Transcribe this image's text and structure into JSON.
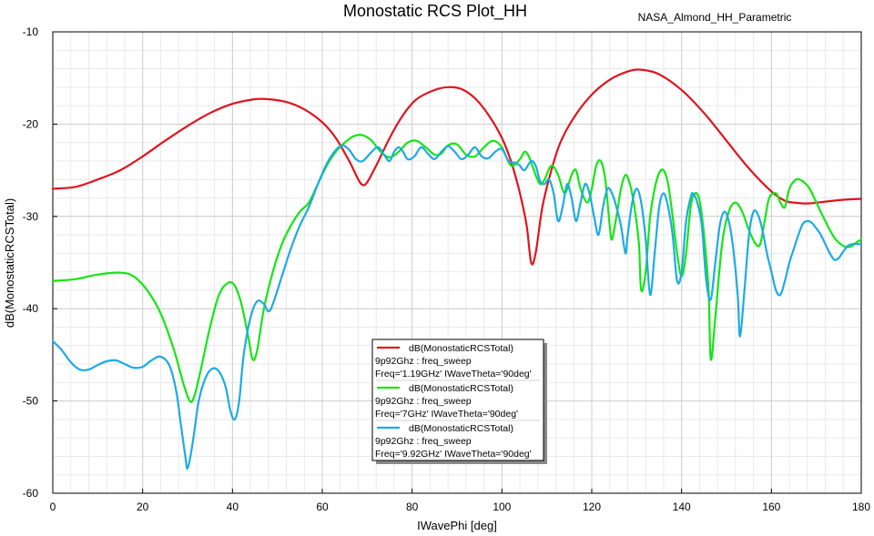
{
  "chart_data": {
    "type": "line",
    "title": "Monostatic RCS Plot_HH",
    "subtitle": "NASA_Almond_HH_Parametric",
    "xlabel": "IWavePhi [deg]",
    "ylabel": "dB(MonostaticRCSTotal)",
    "xlim": [
      0,
      180
    ],
    "ylim": [
      -60,
      -10
    ],
    "xticks": [
      0,
      20,
      40,
      60,
      80,
      100,
      120,
      140,
      160,
      180
    ],
    "yticks": [
      -10,
      -20,
      -30,
      -40,
      -50,
      -60
    ],
    "grid": true,
    "legend_position": "center",
    "series": [
      {
        "name": "dB(MonostaticRCSTotal)",
        "desc_line1": "9p92Ghz : freq_sweep",
        "desc_line2": "Freq='1.19GHz' IWaveTheta='90deg'",
        "color": "#e0141e",
        "points": [
          [
            0,
            -27
          ],
          [
            5,
            -26.8
          ],
          [
            10,
            -26
          ],
          [
            15,
            -25
          ],
          [
            20,
            -23.5
          ],
          [
            25,
            -21.8
          ],
          [
            30,
            -20.2
          ],
          [
            35,
            -18.8
          ],
          [
            40,
            -17.8
          ],
          [
            45,
            -17.3
          ],
          [
            48,
            -17.3
          ],
          [
            52,
            -17.6
          ],
          [
            56,
            -18.4
          ],
          [
            60,
            -19.8
          ],
          [
            63,
            -21.5
          ],
          [
            66,
            -24
          ],
          [
            68,
            -26
          ],
          [
            69,
            -26.6
          ],
          [
            70,
            -26.3
          ],
          [
            72,
            -24.5
          ],
          [
            75,
            -21.5
          ],
          [
            78,
            -19
          ],
          [
            81,
            -17.3
          ],
          [
            85,
            -16.3
          ],
          [
            88,
            -16
          ],
          [
            91,
            -16.2
          ],
          [
            94,
            -17.2
          ],
          [
            97,
            -19
          ],
          [
            100,
            -21.5
          ],
          [
            102,
            -24
          ],
          [
            104,
            -27.5
          ],
          [
            105.5,
            -31
          ],
          [
            106.5,
            -35
          ],
          [
            107.5,
            -34
          ],
          [
            109,
            -29
          ],
          [
            111,
            -25
          ],
          [
            113,
            -22
          ],
          [
            116,
            -19.3
          ],
          [
            120,
            -16.8
          ],
          [
            124,
            -15.2
          ],
          [
            128,
            -14.3
          ],
          [
            131,
            -14.1
          ],
          [
            135,
            -14.6
          ],
          [
            140,
            -16.3
          ],
          [
            145,
            -18.8
          ],
          [
            150,
            -21.8
          ],
          [
            155,
            -24.8
          ],
          [
            160,
            -27.3
          ],
          [
            163,
            -28.3
          ],
          [
            165,
            -28.5
          ],
          [
            168,
            -28.6
          ],
          [
            172,
            -28.4
          ],
          [
            176,
            -28.2
          ],
          [
            180,
            -28.1
          ]
        ]
      },
      {
        "name": "dB(MonostaticRCSTotal)",
        "desc_line1": "9p92Ghz : freq_sweep",
        "desc_line2": "Freq='7GHz' IWaveTheta='90deg'",
        "color": "#14e614",
        "points": [
          [
            0,
            -37
          ],
          [
            5,
            -36.8
          ],
          [
            10,
            -36.3
          ],
          [
            15,
            -36.1
          ],
          [
            18,
            -36.5
          ],
          [
            21,
            -38
          ],
          [
            24,
            -40.5
          ],
          [
            27,
            -44.5
          ],
          [
            29,
            -48
          ],
          [
            30.5,
            -50
          ],
          [
            31.5,
            -49.5
          ],
          [
            33,
            -46.5
          ],
          [
            35,
            -42
          ],
          [
            37,
            -38.5
          ],
          [
            39,
            -37.2
          ],
          [
            40.5,
            -37.5
          ],
          [
            42,
            -39.5
          ],
          [
            43.5,
            -43
          ],
          [
            44.5,
            -45.5
          ],
          [
            45.5,
            -44.5
          ],
          [
            47,
            -40
          ],
          [
            49,
            -36
          ],
          [
            51,
            -33
          ],
          [
            53,
            -31
          ],
          [
            55,
            -29.5
          ],
          [
            57,
            -28.5
          ],
          [
            59,
            -26.5
          ],
          [
            61,
            -24.5
          ],
          [
            63,
            -23
          ],
          [
            65,
            -22
          ],
          [
            67,
            -21.3
          ],
          [
            69,
            -21.2
          ],
          [
            71,
            -21.8
          ],
          [
            73,
            -23
          ],
          [
            75,
            -23.6
          ],
          [
            77,
            -23
          ],
          [
            79,
            -22
          ],
          [
            81,
            -21.8
          ],
          [
            83,
            -22.5
          ],
          [
            85,
            -23.3
          ],
          [
            86.5,
            -23.2
          ],
          [
            88,
            -22.3
          ],
          [
            90,
            -22.2
          ],
          [
            92,
            -23.3
          ],
          [
            94,
            -23.5
          ],
          [
            96,
            -22.5
          ],
          [
            98,
            -21.8
          ],
          [
            100,
            -22.5
          ],
          [
            102,
            -24.5
          ],
          [
            104,
            -23.8
          ],
          [
            105,
            -23
          ],
          [
            106,
            -23.5
          ],
          [
            107.5,
            -25.5
          ],
          [
            108.5,
            -26.5
          ],
          [
            109.5,
            -26
          ],
          [
            111,
            -24.5
          ],
          [
            112.5,
            -25.5
          ],
          [
            114,
            -27.5
          ],
          [
            115.5,
            -25.5
          ],
          [
            116.5,
            -25
          ],
          [
            117.5,
            -27
          ],
          [
            119,
            -28.5
          ],
          [
            120,
            -27
          ],
          [
            121,
            -24.5
          ],
          [
            122,
            -24
          ],
          [
            123,
            -26
          ],
          [
            124,
            -31
          ],
          [
            124.5,
            -32.5
          ],
          [
            125.5,
            -30
          ],
          [
            126.5,
            -27
          ],
          [
            127.5,
            -25.5
          ],
          [
            128.5,
            -26.5
          ],
          [
            129.5,
            -29
          ],
          [
            130.5,
            -33
          ],
          [
            131,
            -38
          ],
          [
            132,
            -36
          ],
          [
            133,
            -30
          ],
          [
            134,
            -27
          ],
          [
            135,
            -25.3
          ],
          [
            136,
            -25
          ],
          [
            137,
            -26.5
          ],
          [
            138,
            -30
          ],
          [
            139,
            -34
          ],
          [
            140,
            -36.5
          ],
          [
            141,
            -34
          ],
          [
            142,
            -29
          ],
          [
            143,
            -27.5
          ],
          [
            144,
            -28.3
          ],
          [
            145,
            -32
          ],
          [
            146,
            -38
          ],
          [
            146.5,
            -45.5
          ],
          [
            147.5,
            -41
          ],
          [
            149,
            -33
          ],
          [
            150.5,
            -29.5
          ],
          [
            152,
            -28.5
          ],
          [
            153.5,
            -29.5
          ],
          [
            155,
            -31.5
          ],
          [
            156.5,
            -33
          ],
          [
            157.5,
            -33
          ],
          [
            158.5,
            -30.5
          ],
          [
            159.5,
            -28
          ],
          [
            161,
            -27.5
          ],
          [
            162,
            -28.5
          ],
          [
            163,
            -29
          ],
          [
            164,
            -27
          ],
          [
            165.5,
            -26
          ],
          [
            167,
            -26.2
          ],
          [
            168.5,
            -27
          ],
          [
            170,
            -28.5
          ],
          [
            172,
            -30.5
          ],
          [
            174,
            -32.3
          ],
          [
            176,
            -33.2
          ],
          [
            177.5,
            -33.3
          ],
          [
            179,
            -32.8
          ],
          [
            180,
            -32.5
          ]
        ]
      },
      {
        "name": "dB(MonostaticRCSTotal)",
        "desc_line1": "9p92Ghz : freq_sweep",
        "desc_line2": "Freq='9.92GHz' IWaveTheta='90deg'",
        "color": "#1eaae6",
        "points": [
          [
            0,
            -43.5
          ],
          [
            2,
            -44.5
          ],
          [
            4,
            -45.8
          ],
          [
            6,
            -46.6
          ],
          [
            8,
            -46.6
          ],
          [
            10,
            -46.1
          ],
          [
            12,
            -45.7
          ],
          [
            14,
            -45.6
          ],
          [
            16,
            -46
          ],
          [
            18,
            -46.4
          ],
          [
            20,
            -46.3
          ],
          [
            22,
            -45.6
          ],
          [
            24,
            -45.2
          ],
          [
            26,
            -46.2
          ],
          [
            27.5,
            -49
          ],
          [
            28.5,
            -52.5
          ],
          [
            29.5,
            -56
          ],
          [
            30,
            -57.3
          ],
          [
            31,
            -55
          ],
          [
            32.5,
            -50
          ],
          [
            34,
            -47.5
          ],
          [
            35.5,
            -46.5
          ],
          [
            37,
            -46.8
          ],
          [
            38.5,
            -48.5
          ],
          [
            39.5,
            -51
          ],
          [
            40.5,
            -52
          ],
          [
            41.5,
            -50
          ],
          [
            42.5,
            -45
          ],
          [
            44,
            -41
          ],
          [
            45.5,
            -39.2
          ],
          [
            47,
            -39.5
          ],
          [
            48,
            -40.3
          ],
          [
            49,
            -39.5
          ],
          [
            51,
            -36.5
          ],
          [
            53,
            -33.5
          ],
          [
            55,
            -31
          ],
          [
            57,
            -29
          ],
          [
            59,
            -26.5
          ],
          [
            61,
            -24.3
          ],
          [
            63,
            -22.8
          ],
          [
            64.5,
            -22.3
          ],
          [
            66,
            -22.8
          ],
          [
            67.5,
            -23.8
          ],
          [
            69,
            -24
          ],
          [
            71,
            -23
          ],
          [
            72.5,
            -22.5
          ],
          [
            74,
            -23.5
          ],
          [
            75,
            -24
          ],
          [
            76,
            -23
          ],
          [
            77,
            -22.5
          ],
          [
            78,
            -23
          ],
          [
            79,
            -23.8
          ],
          [
            80.5,
            -23.5
          ],
          [
            82,
            -22.5
          ],
          [
            83.5,
            -23.2
          ],
          [
            85,
            -23.8
          ],
          [
            86.5,
            -23
          ],
          [
            88,
            -22.4
          ],
          [
            89.5,
            -23
          ],
          [
            91,
            -23.8
          ],
          [
            92.5,
            -23.3
          ],
          [
            94,
            -22.5
          ],
          [
            95.5,
            -23.5
          ],
          [
            97,
            -23.7
          ],
          [
            98.5,
            -23
          ],
          [
            100,
            -22.7
          ],
          [
            101.5,
            -24
          ],
          [
            103,
            -24.2
          ],
          [
            104,
            -24.5
          ],
          [
            105,
            -25
          ],
          [
            106.5,
            -24
          ],
          [
            107.5,
            -24.5
          ],
          [
            108.5,
            -26.2
          ],
          [
            109.5,
            -26.5
          ],
          [
            110.5,
            -26
          ],
          [
            111.5,
            -27.5
          ],
          [
            112.5,
            -30.5
          ],
          [
            113.5,
            -29
          ],
          [
            114.5,
            -26.5
          ],
          [
            115.5,
            -28
          ],
          [
            116.5,
            -30.5
          ],
          [
            117.5,
            -28.5
          ],
          [
            118.5,
            -26.5
          ],
          [
            119.5,
            -27.5
          ],
          [
            120.5,
            -30
          ],
          [
            121.5,
            -32
          ],
          [
            122.5,
            -29
          ],
          [
            123.5,
            -27
          ],
          [
            124.5,
            -27.5
          ],
          [
            125.5,
            -29
          ],
          [
            126.5,
            -31
          ],
          [
            127.5,
            -34
          ],
          [
            128,
            -32
          ],
          [
            129,
            -28.5
          ],
          [
            130,
            -27
          ],
          [
            131,
            -28.5
          ],
          [
            132,
            -32.5
          ],
          [
            133,
            -38.5
          ],
          [
            134,
            -34
          ],
          [
            135,
            -29
          ],
          [
            136,
            -27.5
          ],
          [
            137,
            -29
          ],
          [
            138,
            -32
          ],
          [
            139,
            -37
          ],
          [
            140,
            -36
          ],
          [
            141,
            -30.5
          ],
          [
            142,
            -28
          ],
          [
            142.5,
            -27.5
          ],
          [
            143.5,
            -28.5
          ],
          [
            144.5,
            -31
          ],
          [
            145.5,
            -37
          ],
          [
            146.5,
            -39
          ],
          [
            147.5,
            -35
          ],
          [
            148.5,
            -31
          ],
          [
            149.5,
            -29.5
          ],
          [
            150.5,
            -30.5
          ],
          [
            151.5,
            -33.5
          ],
          [
            152.5,
            -38.5
          ],
          [
            153,
            -43
          ],
          [
            154,
            -38
          ],
          [
            155,
            -32
          ],
          [
            156,
            -29.5
          ],
          [
            157,
            -29.8
          ],
          [
            158,
            -31.5
          ],
          [
            159,
            -34
          ],
          [
            160,
            -36
          ],
          [
            161,
            -38
          ],
          [
            162,
            -38.5
          ],
          [
            163,
            -37
          ],
          [
            164,
            -35
          ],
          [
            165,
            -33.5
          ],
          [
            166,
            -32
          ],
          [
            167,
            -30.8
          ],
          [
            168,
            -30.5
          ],
          [
            169,
            -30.7
          ],
          [
            170,
            -31.3
          ],
          [
            171,
            -32
          ],
          [
            172,
            -33
          ],
          [
            173,
            -34
          ],
          [
            174,
            -34.7
          ],
          [
            175,
            -34.5
          ],
          [
            176,
            -33.8
          ],
          [
            177,
            -33.2
          ],
          [
            178,
            -33
          ],
          [
            179,
            -33
          ],
          [
            180,
            -33
          ]
        ]
      }
    ]
  }
}
